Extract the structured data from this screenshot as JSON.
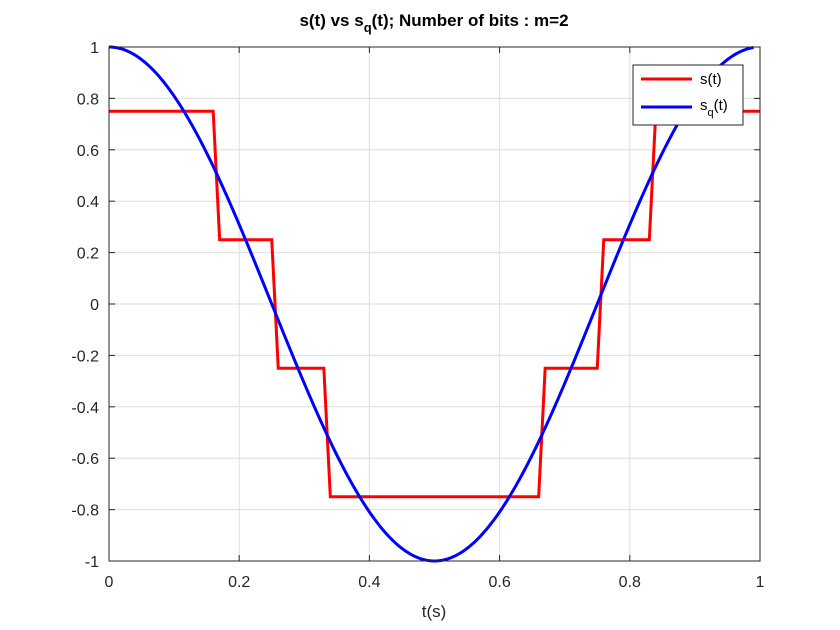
{
  "chart_data": {
    "type": "line",
    "title": {
      "prefix": "s(t) vs s",
      "subscript": "q",
      "suffix": "(t);  Number of bits : m=2"
    },
    "xlabel": "t(s)",
    "ylabel": "",
    "xlim": [
      0,
      1
    ],
    "ylim": [
      -1,
      1
    ],
    "xticks": [
      0,
      0.2,
      0.4,
      0.6,
      0.8,
      1
    ],
    "xtick_labels": [
      "0",
      "0.2",
      "0.4",
      "0.6",
      "0.8",
      "1"
    ],
    "yticks": [
      -1,
      -0.8,
      -0.6,
      -0.4,
      -0.2,
      0,
      0.2,
      0.4,
      0.6,
      0.8,
      1
    ],
    "ytick_labels": [
      "-1",
      "-0.8",
      "-0.6",
      "-0.4",
      "-0.2",
      "0",
      "0.2",
      "0.4",
      "0.6",
      "0.8",
      "1"
    ],
    "grid": true,
    "legend_position": "top-right",
    "series": [
      {
        "name": "s(t)",
        "color": "#ff0000",
        "style": "step",
        "x": [
          0,
          0.16,
          0.17,
          0.25,
          0.26,
          0.33,
          0.34,
          0.66,
          0.67,
          0.75,
          0.76,
          0.83,
          0.84,
          1.0
        ],
        "y": [
          0.75,
          0.75,
          0.25,
          0.25,
          -0.25,
          -0.25,
          -0.75,
          -0.75,
          -0.25,
          -0.25,
          0.25,
          0.25,
          0.75,
          0.75
        ]
      },
      {
        "name": "s",
        "name_subscript": "q",
        "name_suffix": "(t)",
        "color": "#0000ff",
        "style": "line",
        "function": "cos(2*pi*t)",
        "x_range": [
          0,
          0.99
        ]
      }
    ]
  }
}
